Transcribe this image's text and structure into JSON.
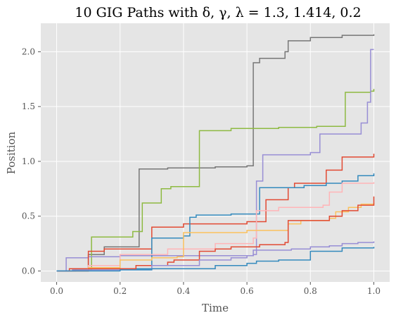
{
  "chart_data": {
    "type": "line",
    "title": "10 GIG Paths with δ, γ, λ = 1.3, 1.414, 0.2",
    "xlabel": "Time",
    "ylabel": "Position",
    "xlim": [
      -0.05,
      1.05
    ],
    "ylim": [
      -0.1,
      2.26
    ],
    "xticks": [
      0.0,
      0.2,
      0.4,
      0.6,
      0.8,
      1.0
    ],
    "xtick_labels": [
      "0.0",
      "0.2",
      "0.4",
      "0.6",
      "0.8",
      "1.0"
    ],
    "yticks": [
      0.0,
      0.5,
      1.0,
      1.5,
      2.0
    ],
    "ytick_labels": [
      "0.0",
      "0.5",
      "1.0",
      "1.5",
      "2.0"
    ],
    "grid": true,
    "plot_background": "#e5e5e5",
    "grid_color": "#ffffff",
    "series": [
      {
        "color": "#777777",
        "x": [
          0,
          0.06,
          0.1,
          0.15,
          0.26,
          0.35,
          0.5,
          0.6,
          0.62,
          0.64,
          0.72,
          0.73,
          0.8,
          0.9,
          1.0
        ],
        "y": [
          0,
          0.02,
          0.15,
          0.22,
          0.93,
          0.94,
          0.95,
          0.96,
          1.9,
          1.94,
          2.0,
          2.1,
          2.13,
          2.15,
          2.16
        ]
      },
      {
        "color": "#8EBA42",
        "x": [
          0,
          0.05,
          0.11,
          0.24,
          0.27,
          0.33,
          0.36,
          0.45,
          0.55,
          0.7,
          0.82,
          0.91,
          0.99,
          1.0
        ],
        "y": [
          0,
          0.01,
          0.31,
          0.36,
          0.62,
          0.75,
          0.77,
          1.28,
          1.3,
          1.31,
          1.32,
          1.63,
          1.64,
          1.66
        ]
      },
      {
        "color": "#988ED5",
        "x": [
          0,
          0.03,
          0.1,
          0.2,
          0.3,
          0.5,
          0.62,
          0.63,
          0.65,
          0.8,
          0.83,
          0.96,
          0.98,
          0.99,
          1.0
        ],
        "y": [
          0,
          0.12,
          0.13,
          0.14,
          0.14,
          0.14,
          0.15,
          0.82,
          1.06,
          1.08,
          1.25,
          1.35,
          1.54,
          2.02,
          2.02
        ]
      },
      {
        "color": "#E24A33",
        "x": [
          0,
          0.04,
          0.1,
          0.15,
          0.3,
          0.4,
          0.52,
          0.6,
          0.66,
          0.73,
          0.75,
          0.85,
          0.9,
          1.0
        ],
        "y": [
          0,
          0.02,
          0.18,
          0.2,
          0.4,
          0.43,
          0.43,
          0.45,
          0.65,
          0.76,
          0.8,
          0.92,
          1.04,
          1.07
        ]
      },
      {
        "color": "#348ABD",
        "x": [
          0,
          0.1,
          0.3,
          0.4,
          0.42,
          0.44,
          0.55,
          0.63,
          0.64,
          0.78,
          0.85,
          0.9,
          0.95,
          1.0
        ],
        "y": [
          0,
          0.02,
          0.3,
          0.32,
          0.49,
          0.51,
          0.52,
          0.52,
          0.76,
          0.78,
          0.8,
          0.82,
          0.87,
          0.89
        ]
      },
      {
        "color": "#FFB5B8",
        "x": [
          0,
          0.1,
          0.2,
          0.35,
          0.5,
          0.62,
          0.63,
          0.7,
          0.84,
          0.86,
          0.9,
          1.0
        ],
        "y": [
          0,
          0.05,
          0.15,
          0.2,
          0.25,
          0.3,
          0.55,
          0.58,
          0.6,
          0.72,
          0.8,
          0.81
        ]
      },
      {
        "color": "#FBC15E",
        "x": [
          0,
          0.1,
          0.2,
          0.3,
          0.38,
          0.4,
          0.6,
          0.73,
          0.77,
          0.86,
          0.88,
          0.92,
          0.96,
          1.0
        ],
        "y": [
          0,
          0.03,
          0.1,
          0.12,
          0.13,
          0.35,
          0.37,
          0.43,
          0.46,
          0.48,
          0.54,
          0.58,
          0.61,
          0.62
        ]
      },
      {
        "color": "#E24A33",
        "x": [
          0,
          0.1,
          0.25,
          0.35,
          0.37,
          0.45,
          0.5,
          0.55,
          0.64,
          0.72,
          0.73,
          0.86,
          0.9,
          0.95,
          1.0
        ],
        "y": [
          0,
          0.02,
          0.05,
          0.08,
          0.1,
          0.18,
          0.2,
          0.22,
          0.24,
          0.26,
          0.46,
          0.5,
          0.55,
          0.6,
          0.68
        ]
      },
      {
        "color": "#988ED5",
        "x": [
          0,
          0.05,
          0.3,
          0.45,
          0.55,
          0.6,
          0.62,
          0.74,
          0.8,
          0.86,
          0.9,
          0.95,
          1.0
        ],
        "y": [
          0,
          0.01,
          0.05,
          0.1,
          0.12,
          0.14,
          0.19,
          0.2,
          0.22,
          0.23,
          0.25,
          0.26,
          0.27
        ]
      },
      {
        "color": "#348ABD",
        "x": [
          0,
          0.2,
          0.3,
          0.5,
          0.6,
          0.63,
          0.7,
          0.8,
          0.9,
          1.0
        ],
        "y": [
          0,
          0.01,
          0.02,
          0.05,
          0.07,
          0.09,
          0.1,
          0.18,
          0.21,
          0.22
        ]
      }
    ]
  }
}
